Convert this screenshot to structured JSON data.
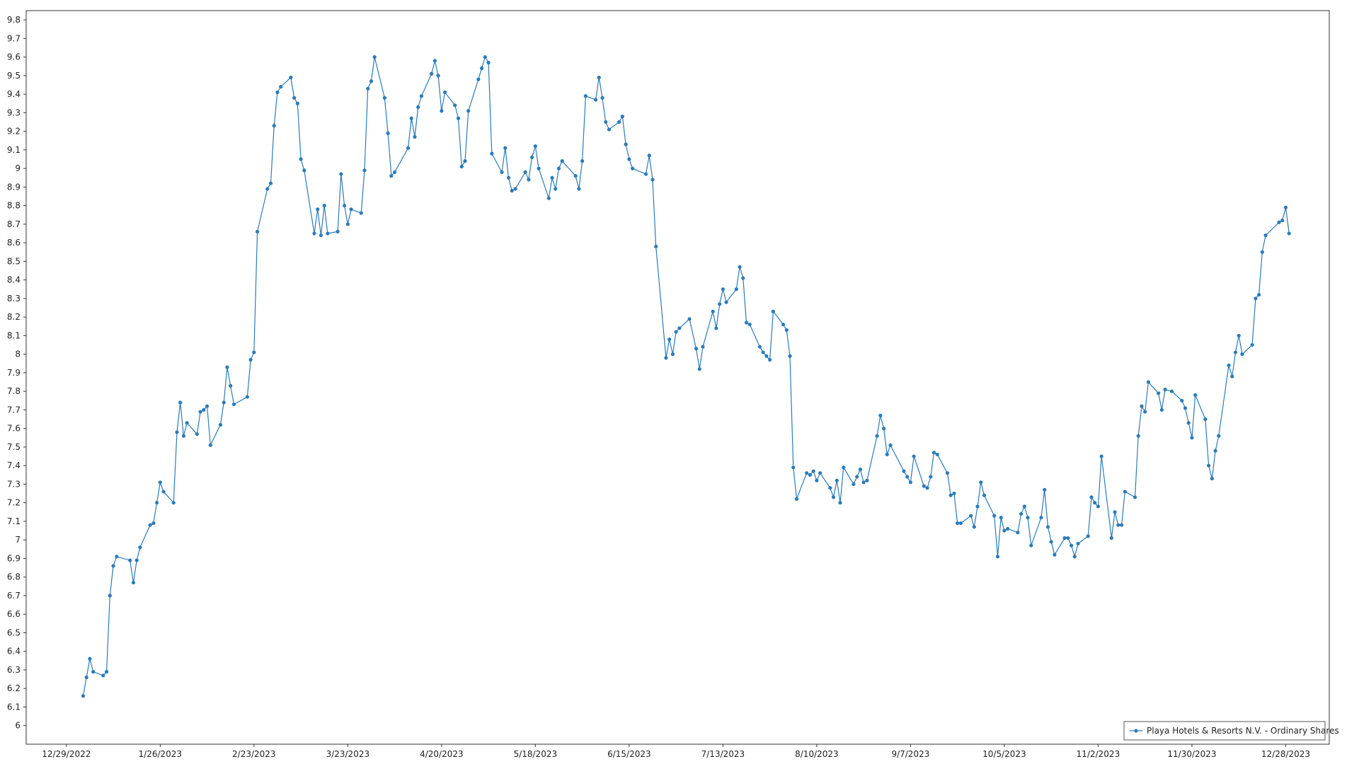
{
  "chart_data": {
    "type": "line",
    "legend": "lower right",
    "grid": true,
    "xlim": [
      "2022-12-17",
      "2024-01-10"
    ],
    "xticks": [
      {
        "value": "2022-12-29",
        "label": "12/29/2022"
      },
      {
        "value": "2023-01-26",
        "label": "1/26/2023"
      },
      {
        "value": "2023-02-23",
        "label": "2/23/2023"
      },
      {
        "value": "2023-03-23",
        "label": "3/23/2023"
      },
      {
        "value": "2023-04-20",
        "label": "4/20/2023"
      },
      {
        "value": "2023-05-18",
        "label": "5/18/2023"
      },
      {
        "value": "2023-06-15",
        "label": "6/15/2023"
      },
      {
        "value": "2023-07-13",
        "label": "7/13/2023"
      },
      {
        "value": "2023-08-10",
        "label": "8/10/2023"
      },
      {
        "value": "2023-09-07",
        "label": "9/7/2023"
      },
      {
        "value": "2023-10-05",
        "label": "10/5/2023"
      },
      {
        "value": "2023-11-02",
        "label": "11/2/2023"
      },
      {
        "value": "2023-11-30",
        "label": "11/30/2023"
      },
      {
        "value": "2023-12-28",
        "label": "12/28/2023"
      }
    ],
    "ylim": [
      5.9,
      9.85
    ],
    "yticks": [
      6,
      6.1,
      6.2,
      6.3,
      6.4,
      6.5,
      6.6,
      6.7,
      6.8,
      6.9,
      7,
      7.1,
      7.2,
      7.3,
      7.4,
      7.5,
      7.6,
      7.7,
      7.8,
      7.9,
      8,
      8.1,
      8.2,
      8.3,
      8.4,
      8.5,
      8.6,
      8.7,
      8.8,
      8.9,
      9,
      9.1,
      9.2,
      9.3,
      9.4,
      9.5,
      9.6,
      9.7,
      9.8
    ],
    "x": [
      "2023-01-03",
      "2023-01-04",
      "2023-01-05",
      "2023-01-06",
      "2023-01-09",
      "2023-01-10",
      "2023-01-11",
      "2023-01-12",
      "2023-01-13",
      "2023-01-17",
      "2023-01-18",
      "2023-01-19",
      "2023-01-20",
      "2023-01-23",
      "2023-01-24",
      "2023-01-25",
      "2023-01-26",
      "2023-01-27",
      "2023-01-30",
      "2023-01-31",
      "2023-02-01",
      "2023-02-02",
      "2023-02-03",
      "2023-02-06",
      "2023-02-07",
      "2023-02-08",
      "2023-02-09",
      "2023-02-10",
      "2023-02-13",
      "2023-02-14",
      "2023-02-15",
      "2023-02-16",
      "2023-02-17",
      "2023-02-21",
      "2023-02-22",
      "2023-02-23",
      "2023-02-24",
      "2023-02-27",
      "2023-02-28",
      "2023-03-01",
      "2023-03-02",
      "2023-03-03",
      "2023-03-06",
      "2023-03-07",
      "2023-03-08",
      "2023-03-09",
      "2023-03-10",
      "2023-03-13",
      "2023-03-14",
      "2023-03-15",
      "2023-03-16",
      "2023-03-17",
      "2023-03-20",
      "2023-03-21",
      "2023-03-22",
      "2023-03-23",
      "2023-03-24",
      "2023-03-27",
      "2023-03-28",
      "2023-03-29",
      "2023-03-30",
      "2023-03-31",
      "2023-04-03",
      "2023-04-04",
      "2023-04-05",
      "2023-04-06",
      "2023-04-10",
      "2023-04-11",
      "2023-04-12",
      "2023-04-13",
      "2023-04-14",
      "2023-04-17",
      "2023-04-18",
      "2023-04-19",
      "2023-04-20",
      "2023-04-21",
      "2023-04-24",
      "2023-04-25",
      "2023-04-26",
      "2023-04-27",
      "2023-04-28",
      "2023-05-01",
      "2023-05-02",
      "2023-05-03",
      "2023-05-04",
      "2023-05-05",
      "2023-05-08",
      "2023-05-09",
      "2023-05-10",
      "2023-05-11",
      "2023-05-12",
      "2023-05-15",
      "2023-05-16",
      "2023-05-17",
      "2023-05-18",
      "2023-05-19",
      "2023-05-22",
      "2023-05-23",
      "2023-05-24",
      "2023-05-25",
      "2023-05-26",
      "2023-05-30",
      "2023-05-31",
      "2023-06-01",
      "2023-06-02",
      "2023-06-05",
      "2023-06-06",
      "2023-06-07",
      "2023-06-08",
      "2023-06-09",
      "2023-06-12",
      "2023-06-13",
      "2023-06-14",
      "2023-06-15",
      "2023-06-16",
      "2023-06-20",
      "2023-06-21",
      "2023-06-22",
      "2023-06-23",
      "2023-06-26",
      "2023-06-27",
      "2023-06-28",
      "2023-06-29",
      "2023-06-30",
      "2023-07-03",
      "2023-07-05",
      "2023-07-06",
      "2023-07-07",
      "2023-07-10",
      "2023-07-11",
      "2023-07-12",
      "2023-07-13",
      "2023-07-14",
      "2023-07-17",
      "2023-07-18",
      "2023-07-19",
      "2023-07-20",
      "2023-07-21",
      "2023-07-24",
      "2023-07-25",
      "2023-07-26",
      "2023-07-27",
      "2023-07-28",
      "2023-07-31",
      "2023-08-01",
      "2023-08-02",
      "2023-08-03",
      "2023-08-04",
      "2023-08-07",
      "2023-08-08",
      "2023-08-09",
      "2023-08-10",
      "2023-08-11",
      "2023-08-14",
      "2023-08-15",
      "2023-08-16",
      "2023-08-17",
      "2023-08-18",
      "2023-08-21",
      "2023-08-22",
      "2023-08-23",
      "2023-08-24",
      "2023-08-25",
      "2023-08-28",
      "2023-08-29",
      "2023-08-30",
      "2023-08-31",
      "2023-09-01",
      "2023-09-05",
      "2023-09-06",
      "2023-09-07",
      "2023-09-08",
      "2023-09-11",
      "2023-09-12",
      "2023-09-13",
      "2023-09-14",
      "2023-09-15",
      "2023-09-18",
      "2023-09-19",
      "2023-09-20",
      "2023-09-21",
      "2023-09-22",
      "2023-09-25",
      "2023-09-26",
      "2023-09-27",
      "2023-09-28",
      "2023-09-29",
      "2023-10-02",
      "2023-10-03",
      "2023-10-04",
      "2023-10-05",
      "2023-10-06",
      "2023-10-09",
      "2023-10-10",
      "2023-10-11",
      "2023-10-12",
      "2023-10-13",
      "2023-10-16",
      "2023-10-17",
      "2023-10-18",
      "2023-10-19",
      "2023-10-20",
      "2023-10-23",
      "2023-10-24",
      "2023-10-25",
      "2023-10-26",
      "2023-10-27",
      "2023-10-30",
      "2023-10-31",
      "2023-11-01",
      "2023-11-02",
      "2023-11-03",
      "2023-11-06",
      "2023-11-07",
      "2023-11-08",
      "2023-11-09",
      "2023-11-10",
      "2023-11-13",
      "2023-11-14",
      "2023-11-15",
      "2023-11-16",
      "2023-11-17",
      "2023-11-20",
      "2023-11-21",
      "2023-11-22",
      "2023-11-24",
      "2023-11-27",
      "2023-11-28",
      "2023-11-29",
      "2023-11-30",
      "2023-12-01",
      "2023-12-04",
      "2023-12-05",
      "2023-12-06",
      "2023-12-07",
      "2023-12-08",
      "2023-12-11",
      "2023-12-12",
      "2023-12-13",
      "2023-12-14",
      "2023-12-15",
      "2023-12-18",
      "2023-12-19",
      "2023-12-20",
      "2023-12-21",
      "2023-12-22",
      "2023-12-26",
      "2023-12-27",
      "2023-12-28",
      "2023-12-29"
    ],
    "series": [
      {
        "name": "Playa Hotels & Resorts N.V. - Ordinary Shares",
        "color": "#2b7bba",
        "values": [
          6.16,
          6.26,
          6.36,
          6.29,
          6.27,
          6.29,
          6.7,
          6.86,
          6.91,
          6.89,
          6.77,
          6.89,
          6.96,
          7.08,
          7.09,
          7.2,
          7.31,
          7.26,
          7.2,
          7.58,
          7.74,
          7.56,
          7.63,
          7.57,
          7.69,
          7.7,
          7.72,
          7.51,
          7.62,
          7.74,
          7.93,
          7.83,
          7.73,
          7.77,
          7.97,
          8.01,
          8.66,
          8.89,
          8.92,
          9.23,
          9.41,
          9.44,
          9.49,
          9.38,
          9.35,
          9.05,
          8.99,
          8.65,
          8.78,
          8.64,
          8.8,
          8.65,
          8.66,
          8.97,
          8.8,
          8.7,
          8.78,
          8.76,
          8.99,
          9.43,
          9.47,
          9.6,
          9.38,
          9.19,
          8.96,
          8.98,
          9.11,
          9.27,
          9.17,
          9.33,
          9.39,
          9.51,
          9.58,
          9.5,
          9.31,
          9.41,
          9.34,
          9.27,
          9.01,
          9.04,
          9.31,
          9.48,
          9.54,
          9.6,
          9.57,
          9.08,
          8.98,
          9.11,
          8.95,
          8.88,
          8.89,
          8.98,
          8.94,
          9.06,
          9.12,
          9.0,
          8.84,
          8.95,
          8.89,
          9.0,
          9.04,
          8.96,
          8.89,
          9.04,
          9.39,
          9.37,
          9.49,
          9.38,
          9.25,
          9.21,
          9.25,
          9.28,
          9.13,
          9.05,
          9.0,
          8.97,
          9.07,
          8.94,
          8.58,
          7.98,
          8.08,
          8.0,
          8.12,
          8.14,
          8.19,
          8.03,
          7.92,
          8.04,
          8.23,
          8.14,
          8.27,
          8.35,
          8.28,
          8.35,
          8.47,
          8.41,
          8.17,
          8.16,
          8.04,
          8.01,
          7.99,
          7.97,
          8.23,
          8.16,
          8.13,
          7.99,
          7.39,
          7.22,
          7.36,
          7.35,
          7.37,
          7.32,
          7.36,
          7.28,
          7.23,
          7.32,
          7.2,
          7.39,
          7.3,
          7.34,
          7.38,
          7.31,
          7.32,
          7.56,
          7.67,
          7.6,
          7.46,
          7.51,
          7.37,
          7.34,
          7.31,
          7.45,
          7.29,
          7.28,
          7.34,
          7.47,
          7.46,
          7.36,
          7.24,
          7.25,
          7.09,
          7.09,
          7.13,
          7.07,
          7.18,
          7.31,
          7.24,
          7.13,
          6.91,
          7.12,
          7.05,
          7.06,
          7.04,
          7.14,
          7.18,
          7.12,
          6.97,
          7.12,
          7.27,
          7.07,
          6.99,
          6.92,
          7.01,
          7.01,
          6.97,
          6.91,
          6.98,
          7.02,
          7.23,
          7.2,
          7.18,
          7.45,
          7.01,
          7.15,
          7.08,
          7.08,
          7.26,
          7.23,
          7.56,
          7.72,
          7.69,
          7.85,
          7.79,
          7.7,
          7.81,
          7.8,
          7.75,
          7.71,
          7.63,
          7.55,
          7.78,
          7.65,
          7.4,
          7.33,
          7.48,
          7.56,
          7.94,
          7.88,
          8.01,
          8.1,
          8.0,
          8.05,
          8.3,
          8.32,
          8.55,
          8.64,
          8.71,
          8.72,
          8.79,
          8.65
        ]
      }
    ]
  }
}
